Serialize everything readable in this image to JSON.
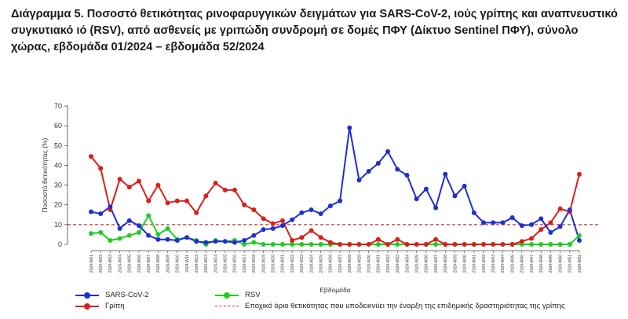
{
  "title": "Διάγραμμα 5. Ποσοστό θετικότητας ρινοφαρυγγικών δειγμάτων για SARS-CoV-2, ιούς γρίπης και αναπνευστικό συγκυτιακό ιό (RSV), από ασθενείς με γριπώδη συνδρομή σε δομές ΠΦΥ (Δίκτυο Sentinel ΠΦΥ), σύνολο χώρας, εβδομάδα 01/2024 – εβδομάδα 52/2024",
  "chart_data": {
    "type": "line",
    "xlabel": "Εβδομάδα",
    "ylabel": "Ποσοστό θετικότητας (%)",
    "ylim": [
      0,
      70
    ],
    "yticks": [
      0,
      10,
      20,
      30,
      40,
      50,
      60,
      70
    ],
    "grid": false,
    "legend_position": "bottom",
    "x": [
      "2024-W01",
      "2024-W02",
      "2024-W03",
      "2024-W04",
      "2024-W05",
      "2024-W06",
      "2024-W07",
      "2024-W08",
      "2024-W09",
      "2024-W10",
      "2024-W11",
      "2024-W12",
      "2024-W13",
      "2024-W14",
      "2024-W15",
      "2024-W16",
      "2024-W17",
      "2024-W18",
      "2024-W19",
      "2024-W20",
      "2024-W21",
      "2024-W22",
      "2024-W23",
      "2024-W24",
      "2024-W25",
      "2024-W26",
      "2024-W27",
      "2024-W28",
      "2024-W29",
      "2024-W30",
      "2024-W31",
      "2024-W32",
      "2024-W33",
      "2024-W34",
      "2024-W35",
      "2024-W36",
      "2024-W37",
      "2024-W38",
      "2024-W39",
      "2024-W40",
      "2024-W41",
      "2024-W42",
      "2024-W43",
      "2024-W44",
      "2024-W45",
      "2024-W46",
      "2024-W47",
      "2024-W48",
      "2024-W49",
      "2024-W50",
      "2024-W51",
      "2024-W52"
    ],
    "series": [
      {
        "name": "SARS-CoV-2",
        "color": "#1f2fd0",
        "values": [
          16.5,
          15.5,
          19,
          8,
          12,
          9.5,
          4.5,
          2.5,
          2.5,
          2,
          3.5,
          1.5,
          1,
          1.5,
          1.5,
          1,
          2,
          4.5,
          7.5,
          8,
          9.5,
          12.5,
          16,
          17.5,
          15.5,
          19.5,
          22,
          59,
          32.5,
          37,
          41,
          47,
          38,
          35,
          23,
          28,
          18.5,
          35.5,
          24.5,
          29.5,
          16,
          11,
          11,
          11,
          13.5,
          9.5,
          10,
          13,
          6,
          9,
          17.5,
          2
        ]
      },
      {
        "name": "Γρίπη",
        "color": "#d8201a",
        "values": [
          44.5,
          38.5,
          17.5,
          33,
          29,
          32,
          22,
          30,
          21,
          22,
          22,
          16,
          24.5,
          31,
          27.5,
          27.5,
          20,
          17.5,
          13,
          10.5,
          12,
          2,
          3.5,
          7,
          3.5,
          1,
          0,
          0,
          0,
          0,
          2.5,
          0,
          2.5,
          0,
          0,
          0,
          2.5,
          0,
          0,
          0,
          0,
          0,
          0,
          0,
          0,
          1.5,
          3,
          7.5,
          11,
          18,
          16.5,
          35.5
        ]
      },
      {
        "name": "RSV",
        "color": "#22cc22",
        "values": [
          5.5,
          6,
          2,
          3,
          4.5,
          6,
          14.5,
          5,
          8,
          2.5,
          3.5,
          2,
          0,
          2,
          1.5,
          2,
          0,
          1,
          0,
          0,
          0,
          0,
          0,
          0,
          0,
          0,
          0,
          0,
          0,
          0,
          0,
          0,
          0,
          0,
          0,
          0,
          0,
          0,
          0,
          0,
          0,
          0,
          0,
          0,
          0,
          0,
          0,
          0,
          0,
          0,
          0,
          4.5
        ]
      }
    ],
    "threshold": {
      "value": 10,
      "color": "#c0392b",
      "label": "Εποχικό όριο θετικότητας που υποδεικνύει την έναρξη της επιδημικής δραστηριότητας της γρίπης"
    }
  }
}
